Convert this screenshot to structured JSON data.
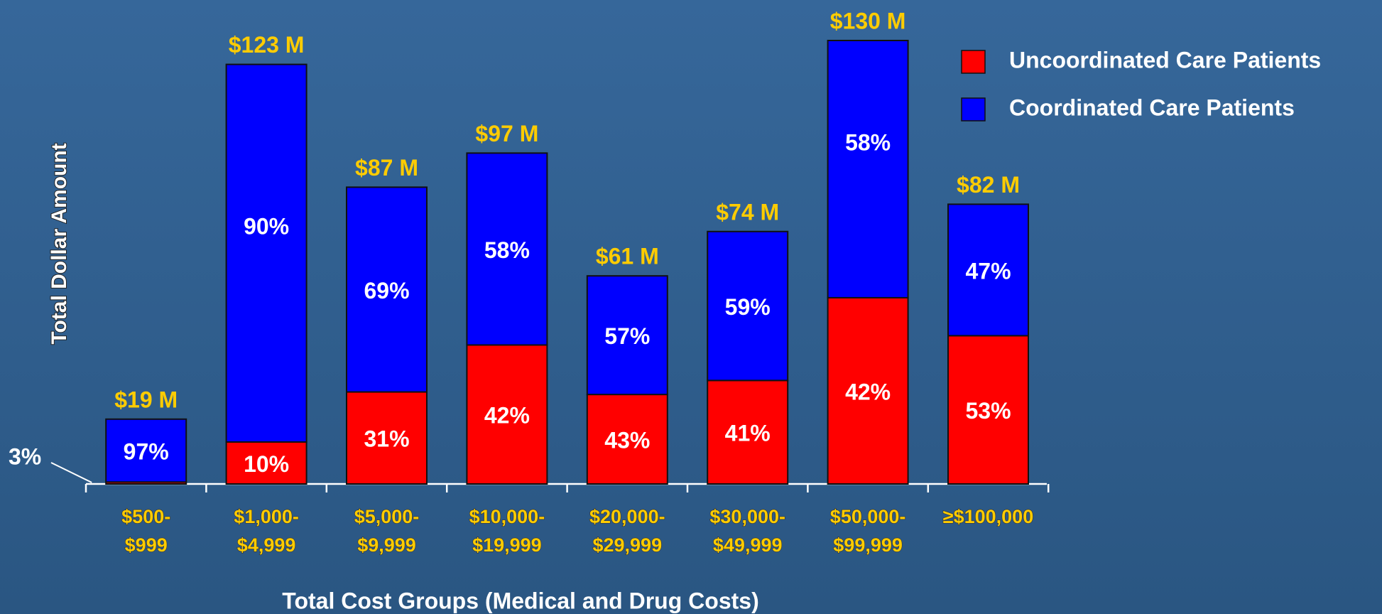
{
  "chart_data": {
    "type": "stacked-bar",
    "y_axis_label": "Total Dollar Amount",
    "x_axis_label": "Total Cost Groups (Medical and Drug Costs)",
    "categories": [
      [
        "$500-",
        "$999"
      ],
      [
        "$1,000-",
        "$4,999"
      ],
      [
        "$5,000-",
        "$9,999"
      ],
      [
        "$10,000-",
        "$19,999"
      ],
      [
        "$20,000-",
        "$29,999"
      ],
      [
        "$30,000-",
        "$49,999"
      ],
      [
        "$50,000-",
        "$99,999"
      ],
      [
        "≥$100,000"
      ]
    ],
    "totals": {
      "values": [
        19,
        123,
        87,
        97,
        61,
        74,
        130,
        82
      ],
      "value_labels": [
        "$19 M",
        "$123 M",
        "$87 M",
        "$97 M",
        "$61 M",
        "$74 M",
        "$130 M",
        "$82 M"
      ]
    },
    "series": [
      {
        "name": "Uncoordinated Care Patients",
        "color": "#ff0000",
        "values": [
          3,
          10,
          31,
          42,
          43,
          41,
          42,
          53
        ],
        "value_labels": [
          "3%",
          "10%",
          "31%",
          "42%",
          "43%",
          "41%",
          "42%",
          "53%"
        ]
      },
      {
        "name": "Coordinated Care Patients",
        "color": "#0000ff",
        "values": [
          97,
          90,
          69,
          58,
          57,
          59,
          58,
          47
        ],
        "value_labels": [
          "97%",
          "90%",
          "69%",
          "58%",
          "57%",
          "59%",
          "58%",
          "47%"
        ]
      }
    ]
  }
}
